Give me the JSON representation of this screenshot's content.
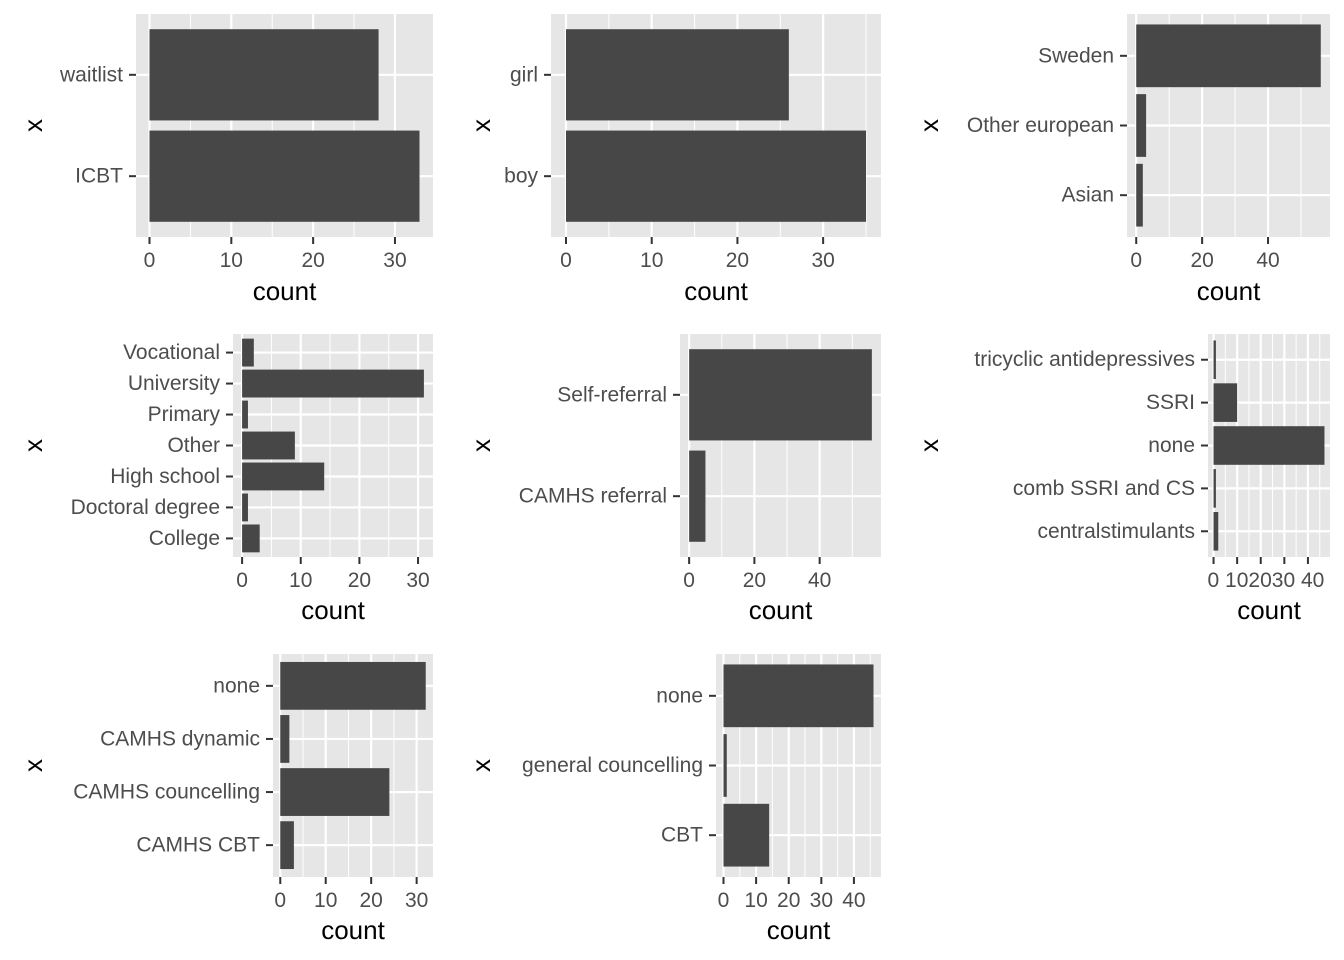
{
  "chart_data": [
    {
      "type": "bar",
      "orientation": "horizontal",
      "categories": [
        "ICBT",
        "waitlist"
      ],
      "values": [
        33,
        28
      ],
      "xlabel": "count",
      "ylabel": "x",
      "xlim": [
        -1.65,
        34.65
      ],
      "xticks": [
        0,
        10,
        20,
        30
      ],
      "grid": true
    },
    {
      "type": "bar",
      "orientation": "horizontal",
      "categories": [
        "boy",
        "girl"
      ],
      "values": [
        35,
        26
      ],
      "xlabel": "count",
      "ylabel": "x",
      "xlim": [
        -1.75,
        36.75
      ],
      "xticks": [
        0,
        10,
        20,
        30
      ],
      "grid": true
    },
    {
      "type": "bar",
      "orientation": "horizontal",
      "categories": [
        "Asian",
        "Other european",
        "Sweden"
      ],
      "values": [
        2,
        3,
        56
      ],
      "xlabel": "count",
      "ylabel": "x",
      "xlim": [
        -2.8,
        58.8
      ],
      "xticks": [
        0,
        20,
        40
      ],
      "grid": true
    },
    {
      "type": "bar",
      "orientation": "horizontal",
      "categories": [
        "College",
        "Doctoral degree",
        "High school",
        "Other",
        "Primary",
        "University",
        "Vocational"
      ],
      "values": [
        3,
        1,
        14,
        9,
        1,
        31,
        2
      ],
      "xlabel": "count",
      "ylabel": "x",
      "xlim": [
        -1.55,
        32.55
      ],
      "xticks": [
        0,
        10,
        20,
        30
      ],
      "grid": true
    },
    {
      "type": "bar",
      "orientation": "horizontal",
      "categories": [
        "CAMHS referral",
        "Self-referral"
      ],
      "values": [
        5,
        56
      ],
      "xlabel": "count",
      "ylabel": "x",
      "xlim": [
        -2.8,
        58.8
      ],
      "xticks": [
        0,
        20,
        40
      ],
      "grid": true
    },
    {
      "type": "bar",
      "orientation": "horizontal",
      "categories": [
        "centralstimulants",
        "comb SSRI and CS",
        "none",
        "SSRI",
        "tricyclic antidepressives"
      ],
      "values": [
        2,
        1,
        47,
        10,
        1
      ],
      "xlabel": "count",
      "ylabel": "x",
      "xlim": [
        -2.35,
        49.35
      ],
      "xticks": [
        0,
        10,
        20,
        30,
        40
      ],
      "xticklabels_joined": "0 102030 40",
      "grid": true
    },
    {
      "type": "bar",
      "orientation": "horizontal",
      "categories": [
        "CAMHS CBT",
        "CAMHS councelling",
        "CAMHS dynamic",
        "none"
      ],
      "values": [
        3,
        24,
        2,
        32
      ],
      "xlabel": "count",
      "ylabel": "x",
      "xlim": [
        -1.6,
        33.6
      ],
      "xticks": [
        0,
        10,
        20,
        30
      ],
      "grid": true
    },
    {
      "type": "bar",
      "orientation": "horizontal",
      "categories": [
        "CBT",
        "general councelling",
        "none"
      ],
      "values": [
        14,
        1,
        46
      ],
      "xlabel": "count",
      "ylabel": "x",
      "xlim": [
        -2.3,
        48.3
      ],
      "xticks": [
        0,
        10,
        20,
        30,
        40
      ],
      "grid": true
    }
  ],
  "colors": {
    "panel_bg": "#e6e6e6",
    "grid": "#ffffff",
    "bar": "#474747",
    "tick_text": "#4d4d4d",
    "tick_mark": "#333333",
    "title_text": "#000000"
  }
}
